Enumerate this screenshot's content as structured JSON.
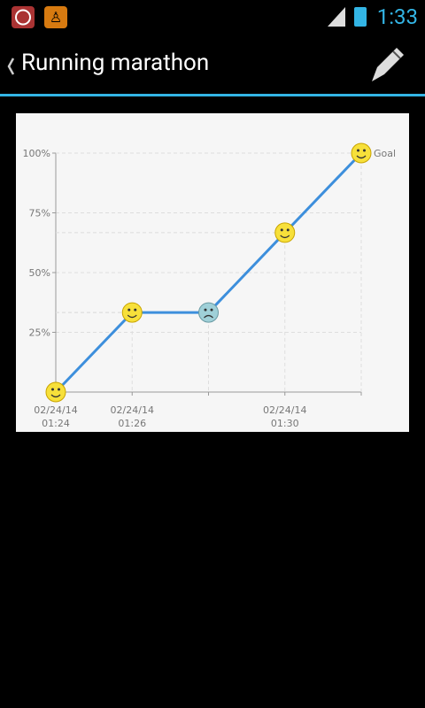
{
  "status_bar": {
    "time": "1:33"
  },
  "action_bar": {
    "title": "Running marathon"
  },
  "chart_data": {
    "type": "line",
    "categories": [
      "02/24/14 01:24",
      "02/24/14 01:26",
      null,
      "02/24/14 01:30",
      null
    ],
    "values": [
      0,
      33.3,
      33.3,
      66.7,
      100
    ],
    "markers": [
      "happy",
      "happy",
      "sad",
      "happy",
      "happy"
    ],
    "color": "#3d8fdc",
    "ylim": [
      0,
      100
    ],
    "yticks": [
      {
        "value": 25,
        "label": "25%"
      },
      {
        "value": 50,
        "label": "50%"
      },
      {
        "value": 75,
        "label": "75%"
      },
      {
        "value": 100,
        "label": "100%"
      }
    ],
    "annotation": "Goal",
    "grid": true
  }
}
